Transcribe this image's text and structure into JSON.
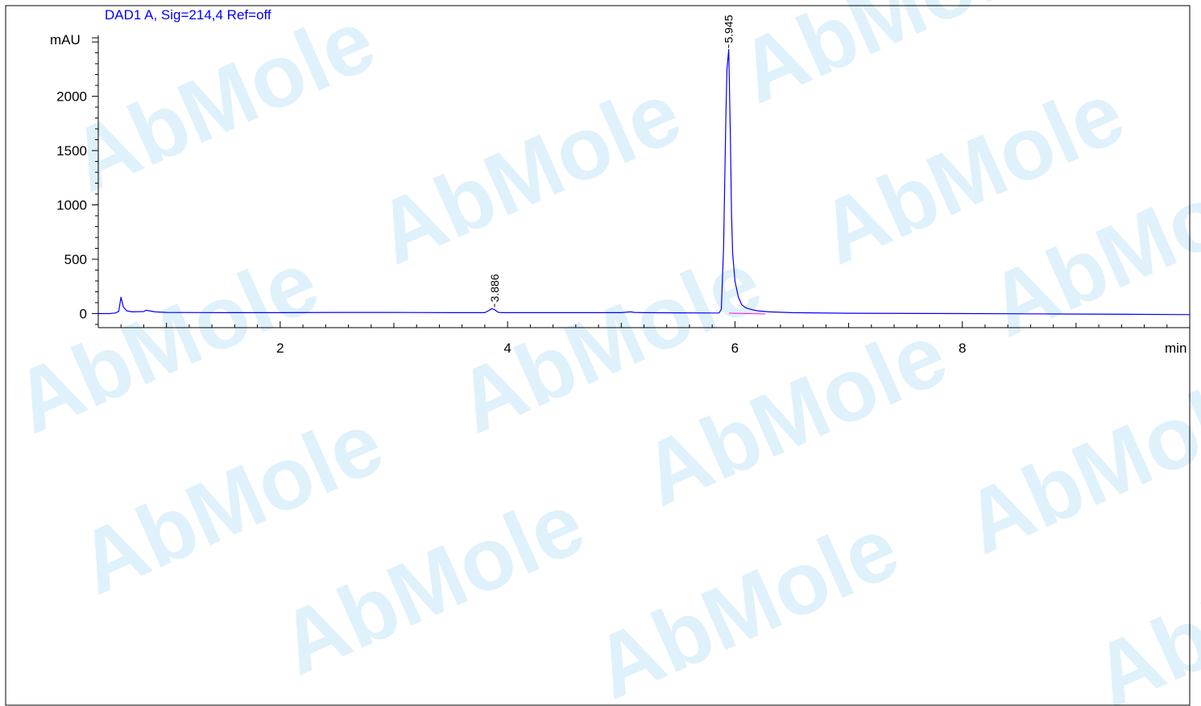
{
  "chart_data": {
    "type": "line",
    "title": "DAD1 A, Sig=214,4 Ref=off",
    "ylabel": "mAU",
    "xlabel": "min",
    "xlim": [
      0.4,
      10.0
    ],
    "ylim": [
      -130,
      2560
    ],
    "x_ticks": [
      2,
      4,
      6,
      8
    ],
    "x_tick_labels": [
      "2",
      "4",
      "6",
      "8"
    ],
    "y_ticks": [
      0,
      500,
      1000,
      1500,
      2000
    ],
    "y_tick_labels": [
      "0",
      "500",
      "1000",
      "1500",
      "2000"
    ],
    "grid": false,
    "series": [
      {
        "color": "#0000ff",
        "x": [
          0.4,
          0.5,
          0.55,
          0.58,
          0.6,
          0.62,
          0.65,
          0.7,
          0.8,
          0.82,
          0.85,
          0.9,
          1.0,
          1.5,
          2.0,
          2.5,
          3.0,
          3.5,
          3.8,
          3.84,
          3.86,
          3.886,
          3.9,
          3.92,
          3.96,
          4.0,
          4.5,
          5.0,
          5.08,
          5.12,
          5.2,
          5.5,
          5.8,
          5.86,
          5.88,
          5.9,
          5.92,
          5.93,
          5.945,
          5.96,
          5.97,
          5.98,
          6.0,
          6.03,
          6.06,
          6.1,
          6.15,
          6.2,
          6.3,
          6.5,
          7.0,
          8.0,
          9.0,
          10.0
        ],
        "y": [
          0,
          0,
          5,
          20,
          150,
          60,
          25,
          15,
          18,
          30,
          25,
          15,
          10,
          8,
          8,
          10,
          10,
          8,
          8,
          30,
          45,
          35,
          25,
          10,
          8,
          8,
          8,
          8,
          15,
          10,
          8,
          6,
          5,
          5,
          40,
          600,
          1800,
          2250,
          2430,
          1600,
          900,
          550,
          300,
          150,
          80,
          50,
          35,
          25,
          15,
          8,
          3,
          0,
          -5,
          -10
        ]
      }
    ],
    "peak_labels": [
      {
        "x": 3.886,
        "y": 45,
        "text": "3.886"
      },
      {
        "x": 5.945,
        "y": 2430,
        "text": "5.945"
      }
    ],
    "watermark": "AbMole"
  }
}
